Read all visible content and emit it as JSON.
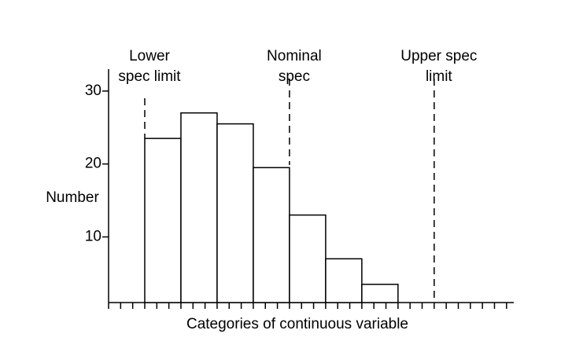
{
  "chart_data": {
    "type": "histogram",
    "bins": [
      3,
      6,
      9,
      12,
      15,
      18,
      21,
      24
    ],
    "values": [
      23.5,
      27,
      25.5,
      19.5,
      13,
      7,
      3.5
    ],
    "color": "#ffffff",
    "xlabel": "Categories of continuous variable",
    "ylabel": "Number",
    "xlim": [
      0,
      33.6
    ],
    "ylim": [
      1,
      33
    ],
    "yticks": [
      10,
      20,
      30
    ],
    "xticks": [
      0,
      1,
      2,
      3,
      4,
      5,
      6,
      7,
      8,
      9,
      10,
      11,
      12,
      13,
      14,
      15,
      16,
      17,
      18,
      19,
      20,
      21,
      22,
      23,
      24,
      25,
      26,
      27,
      28,
      29,
      30,
      31,
      32,
      33
    ],
    "annotations": [
      {
        "lines": [
          "Lower",
          "spec limit"
        ],
        "x": 3
      },
      {
        "lines": [
          "Nominal",
          "spec"
        ],
        "x": 15
      },
      {
        "lines": [
          "Upper spec",
          "limit"
        ],
        "x": 27
      }
    ]
  }
}
